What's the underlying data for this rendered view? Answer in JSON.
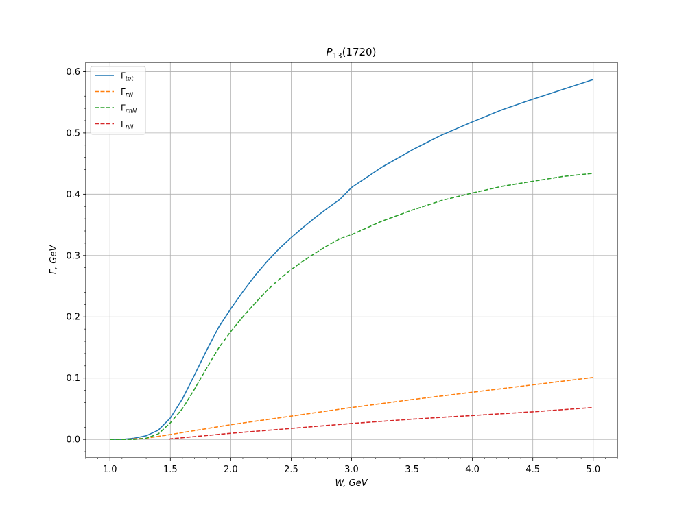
{
  "chart_data": {
    "type": "line",
    "title": "P13(1720)",
    "title_main": "P",
    "title_sub": "13",
    "title_rest": "(1720)",
    "xlabel": "W, GeV",
    "ylabel": "Γ,  GeV",
    "xlim": [
      0.8,
      5.2
    ],
    "ylim": [
      -0.03,
      0.615
    ],
    "x_ticks": [
      1.0,
      1.5,
      2.0,
      2.5,
      3.0,
      3.5,
      4.0,
      4.5,
      5.0
    ],
    "x_tick_labels": [
      "1.0",
      "1.5",
      "2.0",
      "2.5",
      "3.0",
      "3.5",
      "4.0",
      "4.5",
      "5.0"
    ],
    "x_minor_step": 0.1,
    "y_ticks": [
      0.0,
      0.1,
      0.2,
      0.3,
      0.4,
      0.5,
      0.6
    ],
    "y_tick_labels": [
      "0.0",
      "0.1",
      "0.2",
      "0.3",
      "0.4",
      "0.5",
      "0.6"
    ],
    "y_minor_step": 0.02,
    "grid": true,
    "legend_position": "top-left",
    "series": [
      {
        "name": "Γtot",
        "label_main": "Γ",
        "label_sub": "tot",
        "color": "#1f77b4",
        "style": "solid",
        "x": [
          1.0,
          1.1,
          1.2,
          1.3,
          1.4,
          1.5,
          1.6,
          1.7,
          1.8,
          1.9,
          2.0,
          2.1,
          2.2,
          2.3,
          2.4,
          2.5,
          2.6,
          2.7,
          2.8,
          2.9,
          3.0,
          3.25,
          3.5,
          3.75,
          4.0,
          4.25,
          4.5,
          4.75,
          5.0
        ],
        "values": [
          0.0,
          0.0,
          0.002,
          0.006,
          0.015,
          0.035,
          0.066,
          0.105,
          0.145,
          0.183,
          0.213,
          0.241,
          0.267,
          0.29,
          0.311,
          0.329,
          0.346,
          0.362,
          0.377,
          0.391,
          0.411,
          0.444,
          0.472,
          0.497,
          0.518,
          0.538,
          0.555,
          0.571,
          0.587
        ]
      },
      {
        "name": "ΓπN",
        "label_main": "Γ",
        "label_sub": "πN",
        "color": "#ff7f0e",
        "style": "dashed",
        "x": [
          1.0,
          1.1,
          1.2,
          1.3,
          1.5,
          2.0,
          2.5,
          3.0,
          3.5,
          4.0,
          4.5,
          5.0
        ],
        "values": [
          0.0,
          0.0,
          0.001,
          0.002,
          0.008,
          0.024,
          0.038,
          0.052,
          0.065,
          0.077,
          0.089,
          0.101
        ]
      },
      {
        "name": "ΓππN",
        "label_main": "Γ",
        "label_sub": "ππN",
        "color": "#2ca02c",
        "style": "dashed",
        "x": [
          1.0,
          1.1,
          1.2,
          1.3,
          1.4,
          1.5,
          1.6,
          1.7,
          1.8,
          1.9,
          2.0,
          2.1,
          2.2,
          2.3,
          2.4,
          2.5,
          2.6,
          2.7,
          2.8,
          2.9,
          3.0,
          3.25,
          3.5,
          3.75,
          4.0,
          4.25,
          4.5,
          4.75,
          5.0
        ],
        "values": [
          0.0,
          0.0,
          0.0,
          0.002,
          0.009,
          0.027,
          0.05,
          0.082,
          0.116,
          0.149,
          0.176,
          0.2,
          0.222,
          0.243,
          0.261,
          0.277,
          0.291,
          0.304,
          0.316,
          0.327,
          0.334,
          0.356,
          0.374,
          0.39,
          0.402,
          0.413,
          0.421,
          0.429,
          0.434
        ]
      },
      {
        "name": "ΓηN",
        "label_main": "Γ",
        "label_sub": "ηN",
        "color": "#d62728",
        "style": "dashed",
        "x": [
          1.49,
          1.5,
          2.0,
          2.5,
          3.0,
          3.5,
          4.0,
          4.5,
          5.0
        ],
        "values": [
          0.0,
          0.001,
          0.01,
          0.018,
          0.026,
          0.033,
          0.039,
          0.045,
          0.052
        ]
      }
    ]
  }
}
